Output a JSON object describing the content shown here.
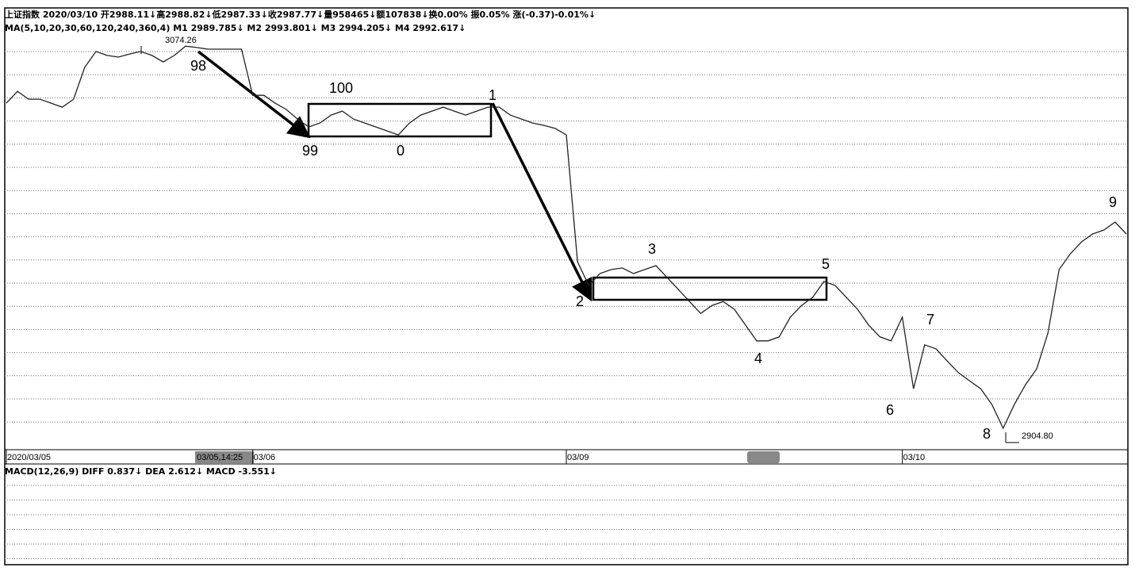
{
  "chart_data": {
    "type": "line",
    "title": "上证指数 2020/03/10 开2988.11↓高2988.82↓低2987.33↓收2987.77↓量958465↓额107838↓换0.00% 振0.05% 涨(-0.37)-0.01%↓",
    "subtitle": "MA(5,10,20,30,60,120,240,360,4)  M1 2989.785↓  M2 2993.801↓  M3 2994.205↓  M4 2992.617↓",
    "cursor_label": "03/05,14:25",
    "macd_title": "MACD(12,26,9)  DIFF 0.837↓  DEA 2.612↓  MACD -3.551↓",
    "color": "#222222",
    "ylim": [
      2899.0,
      3078.7
    ],
    "categories": [
      "2020/03/05",
      null,
      null,
      null,
      null,
      null,
      null,
      null,
      null,
      null,
      null,
      null,
      null,
      null,
      null,
      null,
      null,
      null,
      null,
      null,
      null,
      null,
      "03/06",
      null,
      null,
      null,
      null,
      null,
      null,
      null,
      null,
      null,
      null,
      null,
      null,
      null,
      null,
      null,
      null,
      null,
      null,
      null,
      null,
      null,
      null,
      null,
      null,
      null,
      null,
      null,
      "03/09",
      null,
      null,
      null,
      null,
      null,
      null,
      null,
      null,
      null,
      null,
      null,
      null,
      null,
      null,
      null,
      null,
      null,
      null,
      null,
      null,
      null,
      null,
      null,
      null,
      null,
      null,
      null,
      null,
      null,
      "03/10",
      null,
      null,
      null,
      null,
      null,
      null,
      null,
      null,
      null,
      null,
      null,
      null,
      null,
      null,
      null,
      null,
      null,
      null,
      null,
      null
    ],
    "values": [
      3047.0,
      3052.1,
      3048.7,
      3048.7,
      3047.0,
      3045.3,
      3048.7,
      3062.4,
      3069.2,
      3067.5,
      3066.8,
      3068.1,
      3069.2,
      3067.5,
      3064.7,
      3067.5,
      3071.5,
      3070.9,
      3070.2,
      3070.2,
      3070.2,
      3070.2,
      3050.4,
      3050.4,
      3047.0,
      3044.3,
      3040.2,
      3036.8,
      3038.5,
      3041.9,
      3043.6,
      3040.2,
      3038.5,
      3036.8,
      3035.1,
      3033.4,
      3038.5,
      3041.9,
      3043.6,
      3045.3,
      3043.6,
      3041.9,
      3043.6,
      3045.3,
      3045.3,
      3041.9,
      3040.2,
      3038.5,
      3037.5,
      3036.2,
      3033.4,
      2979.0,
      2968.8,
      2973.9,
      2975.6,
      2976.3,
      2973.9,
      2975.6,
      2977.3,
      2972.2,
      2967.1,
      2961.9,
      2956.8,
      2960.2,
      2961.9,
      2958.6,
      2951.8,
      2945.0,
      2945.0,
      2946.7,
      2955.2,
      2960.2,
      2963.7,
      2970.5,
      2968.8,
      2963.7,
      2958.6,
      2951.8,
      2946.7,
      2945.0,
      2955.2,
      2924.5,
      2943.3,
      2941.6,
      2936.4,
      2931.4,
      2927.9,
      2924.5,
      2917.7,
      2907.5,
      2917.7,
      2926.2,
      2933.0,
      2948.4,
      2975.6,
      2982.4,
      2987.5,
      2990.9,
      2992.6,
      2996.0,
      2990.9
    ],
    "annotations": [
      {
        "text": "3074.26"
      },
      {
        "text": "98"
      },
      {
        "text": "99"
      },
      {
        "text": "100"
      },
      {
        "text": "0"
      },
      {
        "text": "1"
      },
      {
        "text": "2"
      },
      {
        "text": "3"
      },
      {
        "text": "4"
      },
      {
        "text": "5"
      },
      {
        "text": "6"
      },
      {
        "text": "7"
      },
      {
        "text": "8"
      },
      {
        "text": "2904.80"
      },
      {
        "text": "9"
      }
    ]
  }
}
